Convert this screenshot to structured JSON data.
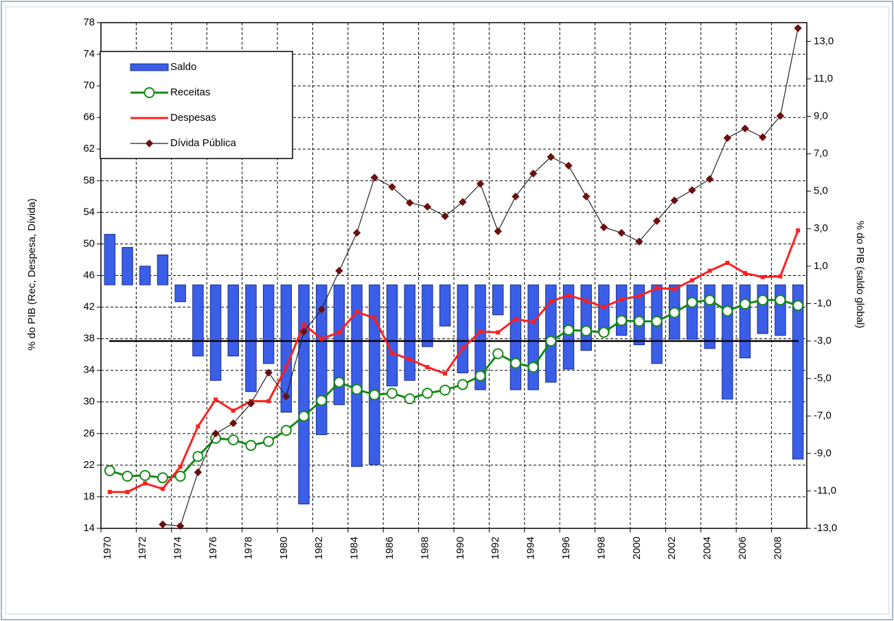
{
  "chart_data": {
    "type": "combo",
    "y_label": "% do PIB (Rec, Despesa, Dívida)",
    "y2_label": "% do PIB (saldo global)",
    "categories": [
      "1970",
      null,
      "1972",
      null,
      "1974",
      null,
      "1976",
      null,
      "1978",
      null,
      "1980",
      null,
      "1982",
      null,
      "1984",
      null,
      "1986",
      null,
      "1988",
      null,
      "1990",
      null,
      "1992",
      null,
      "1994",
      null,
      "1996",
      null,
      "1998",
      null,
      "2000",
      null,
      "2002",
      null,
      "2004",
      null,
      "2006",
      null,
      "2008",
      null
    ],
    "ylim": [
      14,
      78
    ],
    "yticks": [
      14,
      18,
      22,
      26,
      30,
      34,
      38,
      42,
      46,
      50,
      54,
      58,
      62,
      66,
      70,
      74,
      78
    ],
    "y2lim": [
      -13,
      14
    ],
    "y2ticks": [
      {
        "value": -13,
        "label": "-13,0"
      },
      {
        "value": -11,
        "label": "-11,0"
      },
      {
        "value": -9,
        "label": "-9,0"
      },
      {
        "value": -7,
        "label": "-7,0"
      },
      {
        "value": -5,
        "label": "-5,0"
      },
      {
        "value": -3,
        "label": "-3,0"
      },
      {
        "value": -1,
        "label": "-1,0"
      },
      {
        "value": 1,
        "label": "1,0"
      },
      {
        "value": 3,
        "label": "3,0"
      },
      {
        "value": 5,
        "label": "5,0"
      },
      {
        "value": 7,
        "label": "7,0"
      },
      {
        "value": 9,
        "label": "9,0"
      },
      {
        "value": 11,
        "label": "11,0"
      },
      {
        "value": 13,
        "label": "13,0"
      }
    ],
    "y2_reference": -3,
    "grid": true,
    "legend": "top-left",
    "series": [
      {
        "name": "Saldo",
        "type": "bar",
        "axis": "y2",
        "color": "#3a5ee8",
        "values": [
          2.7,
          2.0,
          1.0,
          1.6,
          -0.9,
          -3.8,
          -5.1,
          -3.8,
          -5.7,
          -4.2,
          -6.8,
          -11.7,
          -8.0,
          -6.4,
          -9.7,
          -9.6,
          -5.4,
          -5.1,
          -3.3,
          -2.2,
          -4.7,
          -5.6,
          -1.6,
          -5.6,
          -5.6,
          -5.2,
          -4.5,
          -3.5,
          -2.6,
          -2.7,
          -3.2,
          -4.2,
          -2.9,
          -2.9,
          -3.4,
          -6.1,
          -3.9,
          -2.6,
          -2.7,
          -9.3
        ]
      },
      {
        "name": "Receitas",
        "type": "line",
        "marker": "circle",
        "color": "#138a13",
        "values": [
          21.3,
          20.6,
          20.7,
          20.4,
          20.6,
          23.1,
          25.4,
          25.2,
          24.5,
          25.0,
          26.4,
          28.2,
          30.2,
          32.5,
          31.6,
          30.9,
          31.1,
          30.4,
          31.1,
          31.5,
          32.2,
          33.3,
          36.1,
          34.9,
          34.4,
          37.7,
          39.1,
          39.0,
          38.8,
          40.3,
          40.2,
          40.2,
          41.3,
          42.6,
          42.9,
          41.5,
          42.4,
          42.9,
          42.9,
          42.2
        ]
      },
      {
        "name": "Despesas",
        "type": "line",
        "marker": "square",
        "color": "#ff1e1e",
        "values": [
          18.6,
          18.6,
          19.7,
          19.0,
          21.8,
          26.9,
          30.3,
          28.9,
          30.1,
          30.1,
          34.4,
          39.8,
          38.0,
          38.8,
          41.4,
          40.6,
          36.2,
          35.4,
          34.4,
          33.6,
          36.8,
          38.9,
          38.8,
          40.5,
          40.1,
          42.7,
          43.5,
          42.8,
          42.0,
          43.0,
          43.4,
          44.4,
          44.3,
          45.4,
          46.6,
          47.6,
          46.3,
          45.8,
          45.9,
          51.7
        ]
      },
      {
        "name": "Dívida Pública",
        "type": "line",
        "marker": "diamond",
        "color": "#222222",
        "marker_color": "#6b0f0f",
        "values": [
          null,
          null,
          null,
          14.5,
          14.3,
          21.1,
          26.0,
          27.3,
          29.8,
          33.7,
          30.7,
          38.9,
          41.7,
          46.6,
          51.4,
          58.4,
          57.2,
          55.2,
          54.7,
          53.5,
          55.3,
          57.6,
          51.6,
          56.0,
          58.9,
          61.0,
          59.9,
          56.0,
          52.1,
          51.4,
          50.3,
          52.9,
          55.5,
          56.8,
          58.2,
          63.4,
          64.6,
          63.5,
          66.2,
          77.3
        ]
      }
    ]
  }
}
